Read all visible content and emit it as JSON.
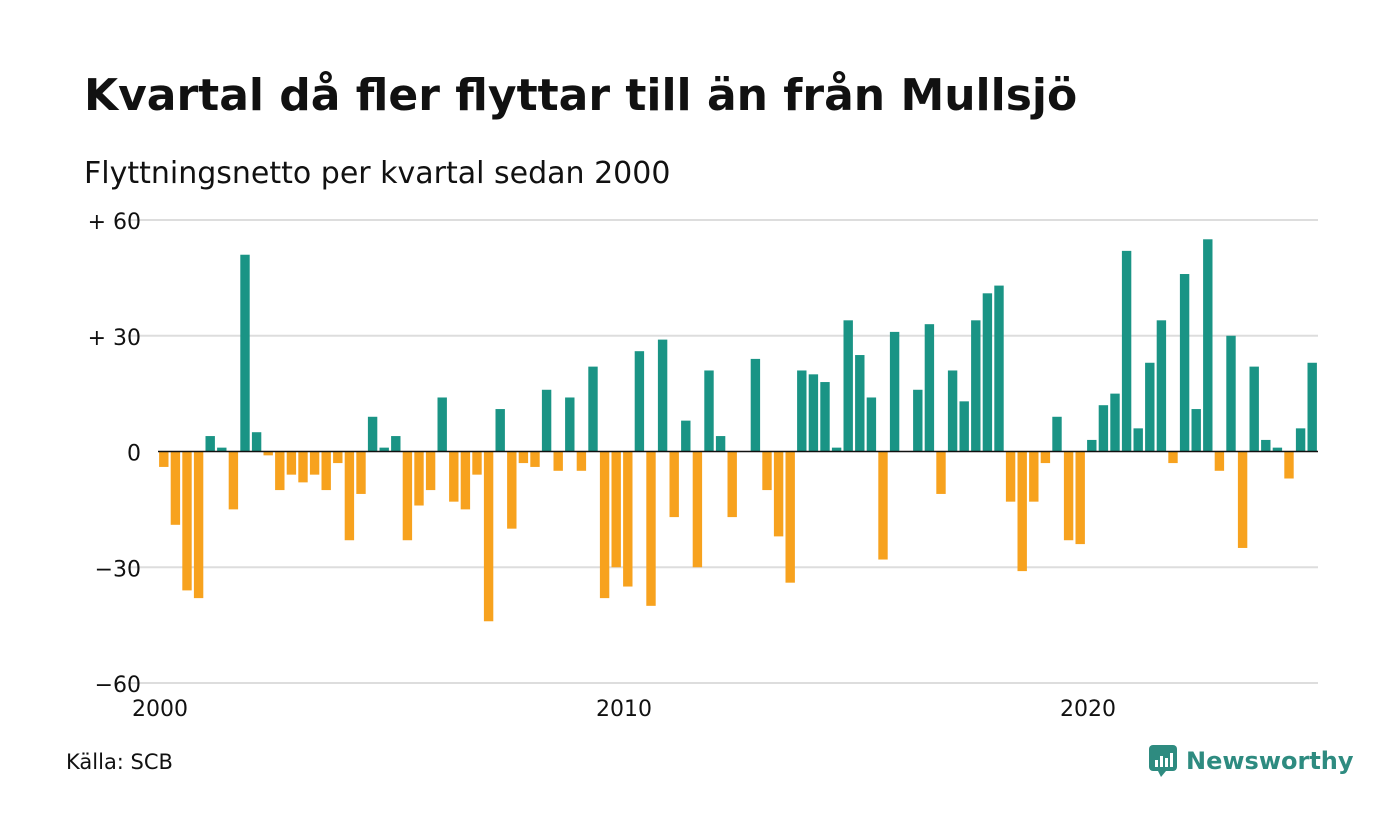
{
  "title": "Kvartal då fler flyttar till än från Mullsjö",
  "subtitle": "Flyttningsnetto per kvartal sedan 2000",
  "source": "Källa: SCB",
  "brand": "Newsworthy",
  "colors": {
    "positive": "#1a9485",
    "negative": "#f7a21e",
    "grid": "#dddddd",
    "zero": "#111111",
    "brand": "#2e8b80"
  },
  "chart_data": {
    "type": "bar",
    "x_start": 2000,
    "periods_per_year": 4,
    "x_ticks": [
      "2000",
      "2010",
      "2020"
    ],
    "y_ticks": [
      {
        "value": 60,
        "label": "+ 60"
      },
      {
        "value": 30,
        "label": "+ 30"
      },
      {
        "value": 0,
        "label": "0"
      },
      {
        "value": -30,
        "label": "−30"
      },
      {
        "value": -60,
        "label": "−60"
      }
    ],
    "ylim": [
      -60,
      60
    ],
    "grid": true,
    "values": [
      -4,
      -19,
      -36,
      -38,
      4,
      1,
      -15,
      51,
      5,
      -1,
      -10,
      -6,
      -8,
      -6,
      -10,
      -3,
      -23,
      -11,
      9,
      1,
      4,
      -23,
      -14,
      -10,
      14,
      -13,
      -15,
      -6,
      -44,
      11,
      -20,
      -3,
      -4,
      16,
      -5,
      14,
      -5,
      22,
      -38,
      -30,
      -35,
      26,
      -40,
      29,
      -17,
      8,
      -30,
      21,
      4,
      -17,
      0,
      24,
      -10,
      -22,
      -34,
      21,
      20,
      18,
      1,
      34,
      25,
      14,
      -28,
      31,
      0,
      16,
      33,
      -11,
      21,
      13,
      34,
      41,
      43,
      -13,
      -31,
      -13,
      -3,
      9,
      -23,
      -24,
      3,
      12,
      15,
      52,
      6,
      23,
      34,
      -3,
      46,
      11,
      55,
      -5,
      30,
      -25,
      22,
      3,
      1,
      -7,
      6,
      23
    ]
  }
}
